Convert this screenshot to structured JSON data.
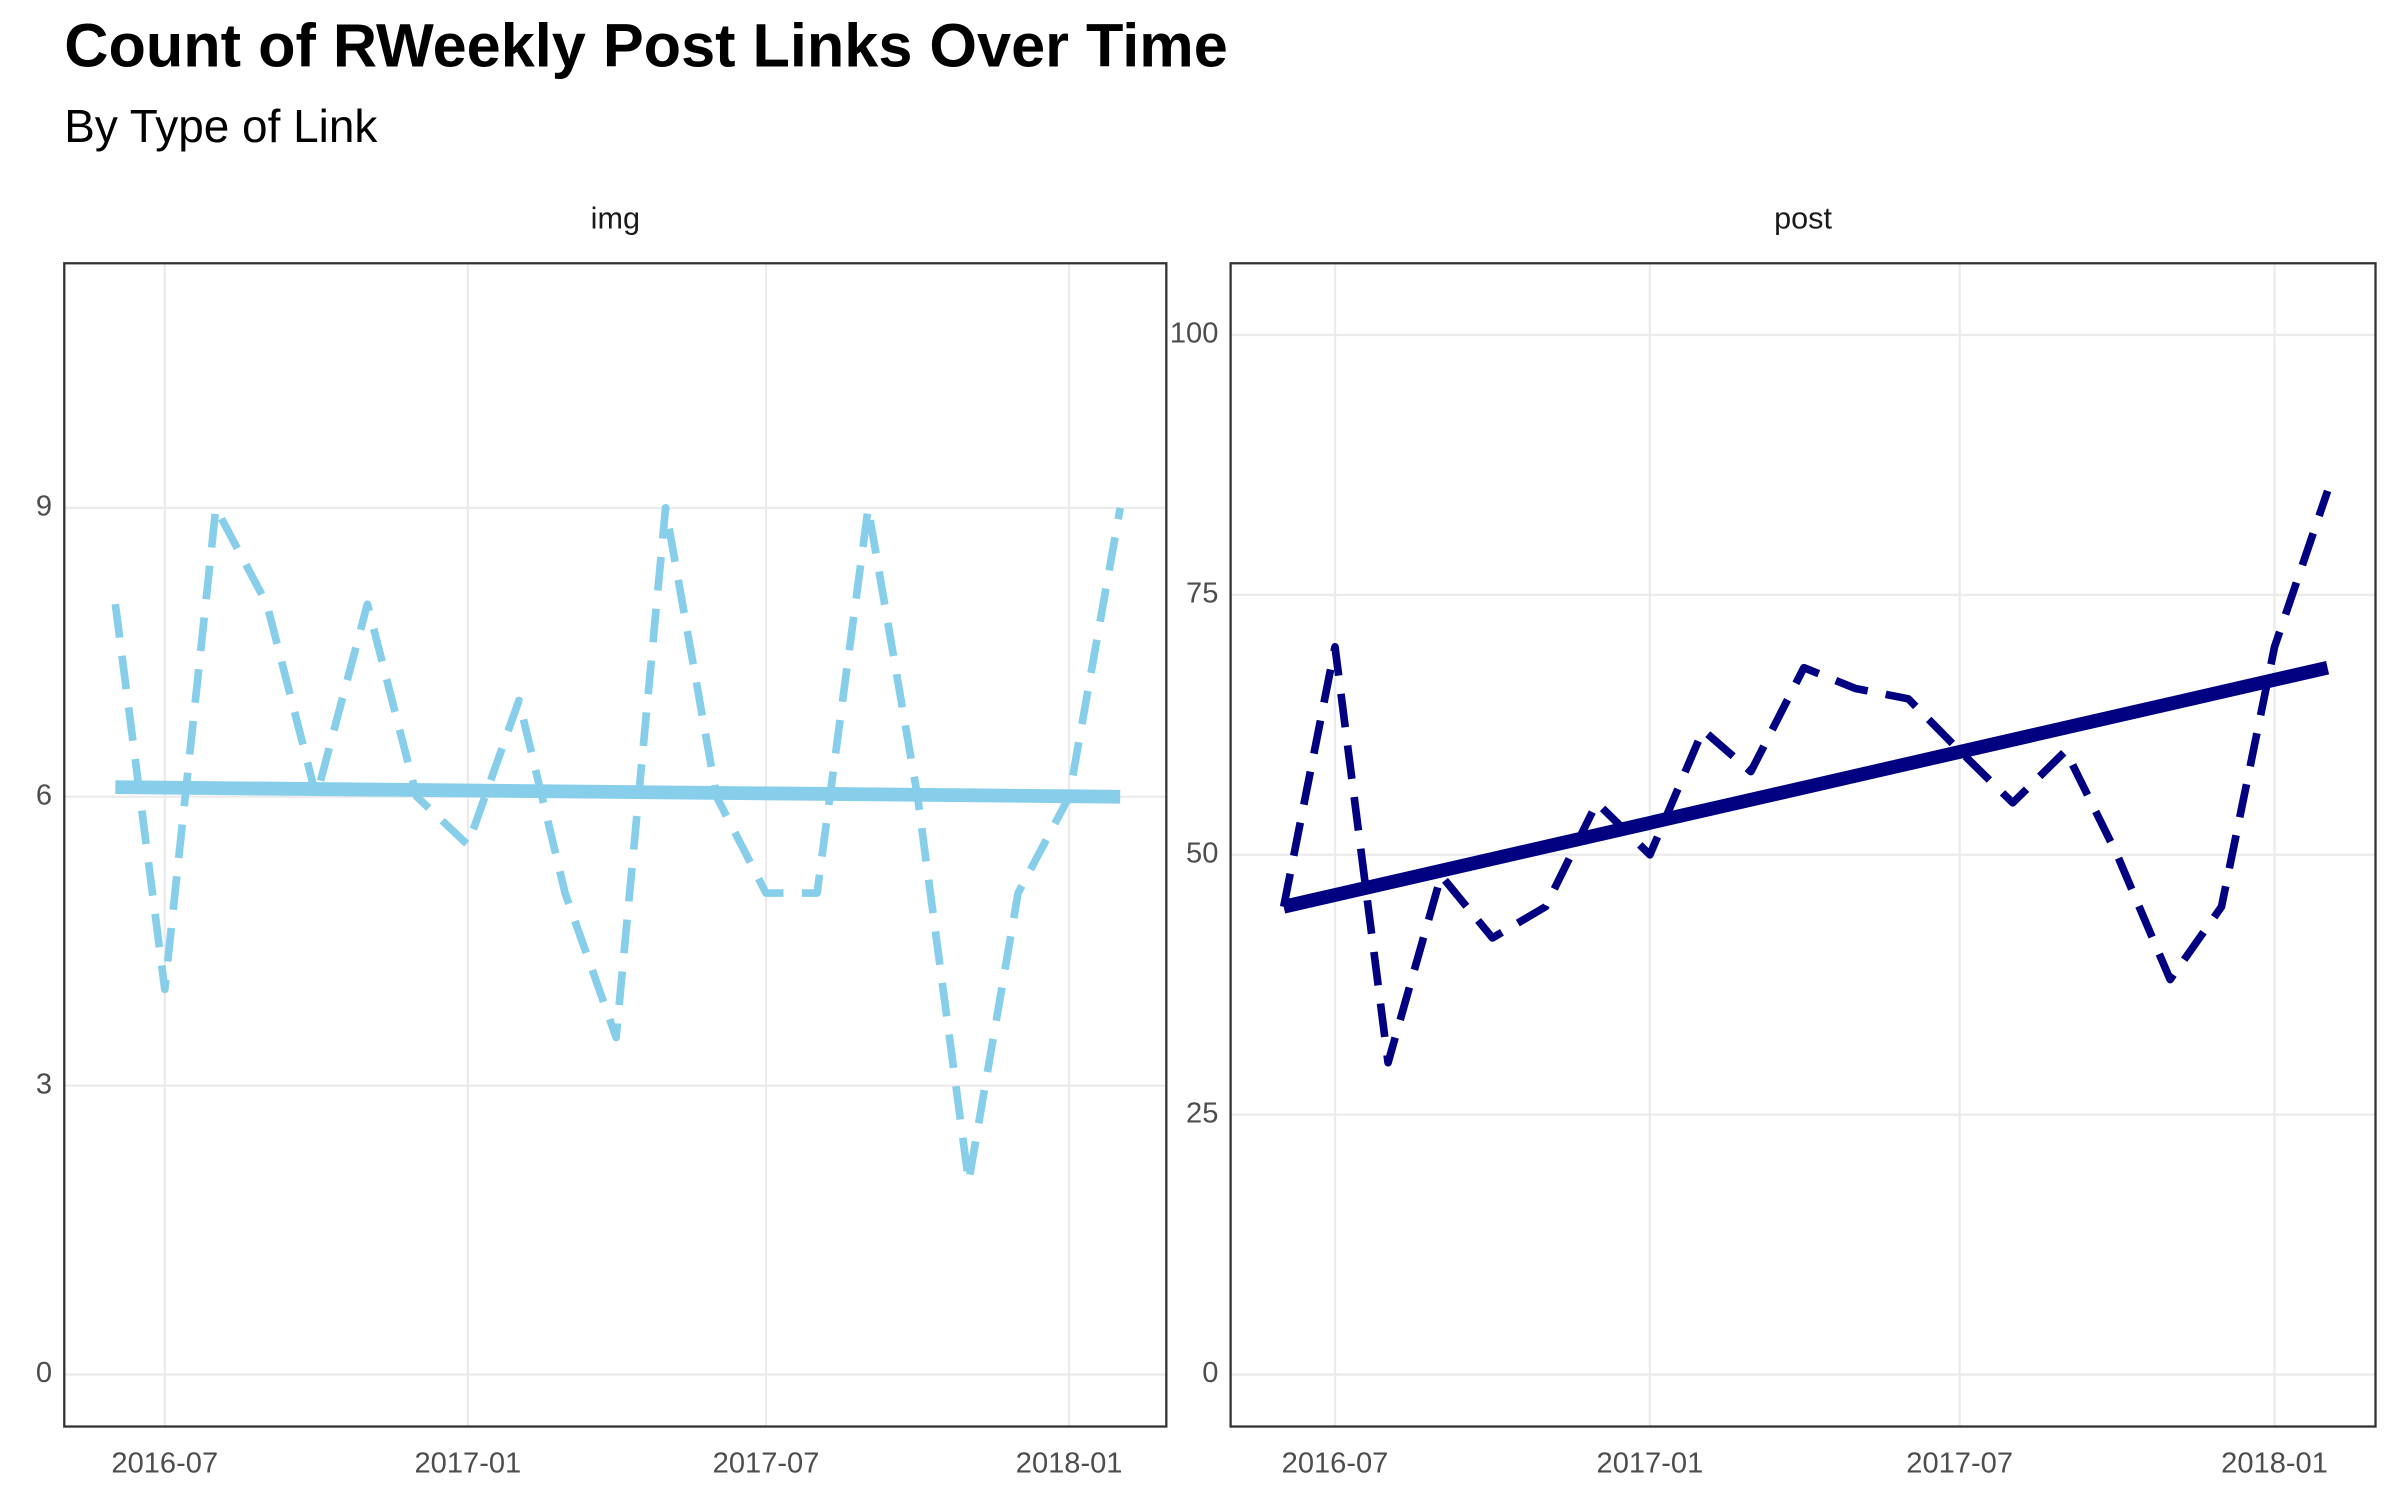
{
  "title": "Count of RWeekly Post Links Over Time",
  "subtitle": "By Type of Link",
  "chart_data": [
    {
      "type": "line",
      "title": "img",
      "xlim": [
        "2016-05",
        "2018-03"
      ],
      "xticks": [
        "2016-07",
        "2017-01",
        "2017-07",
        "2018-01"
      ],
      "ylim": [
        -0.54,
        11.54
      ],
      "yticks": [
        0,
        3,
        6,
        9
      ],
      "grid": true,
      "series": [
        {
          "color": "#87ceeb",
          "dash": true,
          "x": [
            "2016-06",
            "2016-07",
            "2016-08",
            "2016-09",
            "2016-10",
            "2016-11",
            "2016-12",
            "2017-01",
            "2017-02",
            "2017-03",
            "2017-04",
            "2017-05",
            "2017-06",
            "2017-07",
            "2017-08",
            "2017-09",
            "2017-10",
            "2017-11",
            "2017-12",
            "2018-01",
            "2018-02"
          ],
          "values": [
            8,
            4,
            9,
            8,
            6,
            8,
            6,
            5.5,
            7,
            5,
            3.5,
            9,
            6,
            5,
            5,
            9,
            6,
            2,
            5,
            6,
            9
          ]
        },
        {
          "color": "#87ceeb",
          "dash": false,
          "x": [
            "2016-06",
            "2018-02"
          ],
          "values": [
            6.1,
            6.0
          ]
        }
      ]
    },
    {
      "type": "line",
      "title": "post",
      "xlim": [
        "2016-05",
        "2018-03"
      ],
      "xticks": [
        "2016-07",
        "2017-01",
        "2017-07",
        "2018-01"
      ],
      "ylim": [
        -5,
        106.9
      ],
      "yticks": [
        0,
        25,
        50,
        75,
        100
      ],
      "grid": true,
      "series": [
        {
          "color": "#000080",
          "dash": true,
          "x": [
            "2016-06",
            "2016-07",
            "2016-08",
            "2016-09",
            "2016-10",
            "2016-11",
            "2016-12",
            "2017-01",
            "2017-02",
            "2017-03",
            "2017-04",
            "2017-05",
            "2017-06",
            "2017-07",
            "2017-08",
            "2017-09",
            "2017-10",
            "2017-11",
            "2017-12",
            "2018-01",
            "2018-02"
          ],
          "values": [
            45,
            70,
            30,
            48,
            42,
            45,
            55,
            50,
            62,
            58,
            68,
            66,
            65,
            60,
            55,
            60,
            50,
            38,
            45,
            70,
            85
          ]
        },
        {
          "color": "#000080",
          "dash": false,
          "x": [
            "2016-06",
            "2018-02"
          ],
          "values": [
            45,
            68
          ]
        }
      ]
    }
  ]
}
